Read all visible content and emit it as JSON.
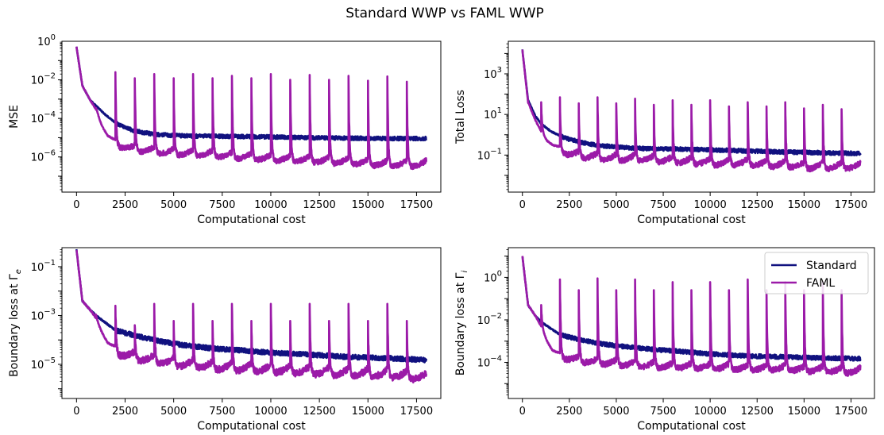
{
  "figure": {
    "title": "Standard WWP vs FAML WWP"
  },
  "colors": {
    "standard": "#10117f",
    "faml": "#9b1aa8"
  },
  "legend": {
    "location": "upper right",
    "panel": 3,
    "entries": [
      "Standard",
      "FAML"
    ]
  },
  "chart_data": [
    {
      "type": "line",
      "yscale": "log",
      "xlabel": "Computational cost",
      "ylabel": "MSE",
      "xlim": [
        -750,
        18750
      ],
      "ylim": [
        1.5e-08,
        1.0
      ],
      "xticks": [
        0,
        2500,
        5000,
        7500,
        10000,
        12500,
        15000,
        17500
      ],
      "xtick_labels": [
        "0",
        "2500",
        "5000",
        "7500",
        "10000",
        "12500",
        "15000",
        "17500"
      ],
      "yticks": [
        1e-06,
        0.0001,
        0.01,
        1
      ],
      "ytick_labels": [
        {
          "b": "10",
          "e": "−6"
        },
        {
          "b": "10",
          "e": "−4"
        },
        {
          "b": "10",
          "e": "−2"
        },
        {
          "b": "10",
          "e": "0"
        }
      ],
      "series": [
        {
          "name": "Standard",
          "key": "standard",
          "x": [
            0,
            300,
            700,
            1000,
            1500,
            2000,
            2500,
            3000,
            4000,
            5000,
            6000,
            7000,
            8000,
            10000,
            12000,
            14000,
            16000,
            18000
          ],
          "y": [
            0.5,
            0.005,
            0.0009,
            0.00045,
            0.00015,
            6e-05,
            3.5e-05,
            2.2e-05,
            1.5e-05,
            1.3e-05,
            1.2e-05,
            1.2e-05,
            1.15e-05,
            1.1e-05,
            1e-05,
            9.5e-06,
            9e-06,
            9e-06
          ]
        },
        {
          "name": "FAML",
          "key": "faml",
          "x": [
            0,
            300,
            700,
            1000,
            1300,
            1600,
            2000,
            3000,
            4000,
            5000,
            6000,
            7000,
            8000,
            9000,
            10000,
            11000,
            12000,
            13000,
            14000,
            15000,
            16000,
            17000,
            18000
          ],
          "y": [
            0.5,
            0.005,
            0.0009,
            0.0003,
            4e-05,
            1e-05,
            3.5e-06,
            1.8e-06,
            1.5e-06,
            1.2e-06,
            1.1e-06,
            1e-06,
            8e-07,
            7e-07,
            6e-07,
            5.5e-07,
            5e-07,
            4.5e-07,
            4e-07,
            3.5e-07,
            3e-07,
            3e-07,
            3e-07
          ],
          "spikes": [
            {
              "x": 1000,
              "y": 0.00035
            },
            {
              "x": 2000,
              "y": 0.025
            },
            {
              "x": 3000,
              "y": 0.012
            },
            {
              "x": 4000,
              "y": 0.02
            },
            {
              "x": 5000,
              "y": 0.012
            },
            {
              "x": 6000,
              "y": 0.02
            },
            {
              "x": 7000,
              "y": 0.012
            },
            {
              "x": 8000,
              "y": 0.016
            },
            {
              "x": 9000,
              "y": 0.012
            },
            {
              "x": 10000,
              "y": 0.02
            },
            {
              "x": 11000,
              "y": 0.01
            },
            {
              "x": 12000,
              "y": 0.018
            },
            {
              "x": 13000,
              "y": 0.01
            },
            {
              "x": 14000,
              "y": 0.016
            },
            {
              "x": 15000,
              "y": 0.009
            },
            {
              "x": 16000,
              "y": 0.015
            },
            {
              "x": 17000,
              "y": 0.008
            }
          ]
        }
      ]
    },
    {
      "type": "line",
      "yscale": "log",
      "xlabel": "Computational cost",
      "ylabel": "Total Loss",
      "xlim": [
        -750,
        18750
      ],
      "ylim": [
        0.0015,
        40000
      ],
      "xticks": [
        0,
        2500,
        5000,
        7500,
        10000,
        12500,
        15000,
        17500
      ],
      "xtick_labels": [
        "0",
        "2500",
        "5000",
        "7500",
        "10000",
        "12500",
        "15000",
        "17500"
      ],
      "yticks": [
        0.1,
        10,
        1000
      ],
      "ytick_labels": [
        {
          "b": "10",
          "e": "−1"
        },
        {
          "b": "10",
          "e": "1"
        },
        {
          "b": "10",
          "e": "3"
        }
      ],
      "series": [
        {
          "name": "Standard",
          "key": "standard",
          "x": [
            0,
            300,
            700,
            1000,
            1500,
            2000,
            2500,
            3000,
            4000,
            5000,
            6000,
            7000,
            8000,
            10000,
            12000,
            14000,
            16000,
            18000
          ],
          "y": [
            15000,
            50,
            8,
            3.5,
            1.5,
            0.9,
            0.6,
            0.45,
            0.3,
            0.25,
            0.22,
            0.2,
            0.2,
            0.18,
            0.16,
            0.14,
            0.13,
            0.12
          ]
        },
        {
          "name": "FAML",
          "key": "faml",
          "x": [
            0,
            300,
            700,
            1000,
            1300,
            1600,
            2000,
            3000,
            4000,
            5000,
            6000,
            7000,
            8000,
            9000,
            10000,
            11000,
            12000,
            13000,
            14000,
            15000,
            16000,
            17000,
            18000
          ],
          "y": [
            15000,
            40,
            5,
            1.5,
            0.5,
            0.25,
            0.12,
            0.07,
            0.06,
            0.05,
            0.05,
            0.045,
            0.04,
            0.035,
            0.03,
            0.03,
            0.03,
            0.025,
            0.025,
            0.02,
            0.02,
            0.02,
            0.02
          ],
          "spikes": [
            {
              "x": 1000,
              "y": 40
            },
            {
              "x": 2000,
              "y": 70
            },
            {
              "x": 3000,
              "y": 35
            },
            {
              "x": 4000,
              "y": 70
            },
            {
              "x": 5000,
              "y": 35
            },
            {
              "x": 6000,
              "y": 60
            },
            {
              "x": 7000,
              "y": 30
            },
            {
              "x": 8000,
              "y": 50
            },
            {
              "x": 9000,
              "y": 30
            },
            {
              "x": 10000,
              "y": 50
            },
            {
              "x": 11000,
              "y": 25
            },
            {
              "x": 12000,
              "y": 40
            },
            {
              "x": 13000,
              "y": 25
            },
            {
              "x": 14000,
              "y": 40
            },
            {
              "x": 15000,
              "y": 20
            },
            {
              "x": 16000,
              "y": 30
            },
            {
              "x": 17000,
              "y": 18
            }
          ]
        }
      ]
    },
    {
      "type": "line",
      "yscale": "log",
      "xlabel": "Computational cost",
      "ylabel": "Boundary loss at Γ",
      "ylabel_sub": "e",
      "xlim": [
        -750,
        18750
      ],
      "ylim": [
        4e-07,
        0.6
      ],
      "xticks": [
        0,
        2500,
        5000,
        7500,
        10000,
        12500,
        15000,
        17500
      ],
      "xtick_labels": [
        "0",
        "2500",
        "5000",
        "7500",
        "10000",
        "12500",
        "15000",
        "17500"
      ],
      "yticks": [
        1e-05,
        0.001,
        0.1
      ],
      "ytick_labels": [
        {
          "b": "10",
          "e": "−5"
        },
        {
          "b": "10",
          "e": "−3"
        },
        {
          "b": "10",
          "e": "−1"
        }
      ],
      "series": [
        {
          "name": "Standard",
          "key": "standard",
          "x": [
            0,
            300,
            700,
            1000,
            1500,
            2000,
            3000,
            4000,
            5000,
            6000,
            7000,
            8000,
            9000,
            10000,
            12000,
            14000,
            16000,
            18000
          ],
          "y": [
            0.5,
            0.004,
            0.0017,
            0.001,
            0.0005,
            0.00025,
            0.00015,
            0.0001,
            7e-05,
            5.5e-05,
            4.5e-05,
            4e-05,
            3.5e-05,
            3e-05,
            2.5e-05,
            2e-05,
            1.8e-05,
            1.5e-05
          ]
        },
        {
          "name": "FAML",
          "key": "faml",
          "x": [
            0,
            300,
            700,
            1000,
            1300,
            1600,
            2000,
            3000,
            4000,
            5000,
            6000,
            7000,
            8000,
            9000,
            10000,
            11000,
            12000,
            13000,
            14000,
            15000,
            16000,
            17000,
            18000
          ],
          "y": [
            0.5,
            0.004,
            0.0017,
            0.0008,
            0.0002,
            6e-05,
            2.5e-05,
            1.5e-05,
            1.1e-05,
            8e-06,
            7e-06,
            6e-06,
            5.5e-06,
            5e-06,
            4.5e-06,
            4e-06,
            3.8e-06,
            3.5e-06,
            3.2e-06,
            3e-06,
            2.8e-06,
            2.5e-06,
            2e-06
          ],
          "spikes": [
            {
              "x": 1000,
              "y": 0.0011
            },
            {
              "x": 2000,
              "y": 0.0025
            },
            {
              "x": 3000,
              "y": 0.0004
            },
            {
              "x": 4000,
              "y": 0.003
            },
            {
              "x": 5000,
              "y": 0.0006
            },
            {
              "x": 6000,
              "y": 0.003
            },
            {
              "x": 7000,
              "y": 0.0006
            },
            {
              "x": 8000,
              "y": 0.003
            },
            {
              "x": 9000,
              "y": 0.0006
            },
            {
              "x": 10000,
              "y": 0.003
            },
            {
              "x": 11000,
              "y": 0.0006
            },
            {
              "x": 12000,
              "y": 0.003
            },
            {
              "x": 13000,
              "y": 0.0006
            },
            {
              "x": 14000,
              "y": 0.003
            },
            {
              "x": 15000,
              "y": 0.0006
            },
            {
              "x": 16000,
              "y": 0.003
            },
            {
              "x": 17000,
              "y": 0.0006
            }
          ]
        }
      ]
    },
    {
      "type": "line",
      "yscale": "log",
      "xlabel": "Computational cost",
      "ylabel": "Boundary loss at Γ",
      "ylabel_sub": "i",
      "xlim": [
        -750,
        18750
      ],
      "ylim": [
        2e-06,
        25
      ],
      "xticks": [
        0,
        2500,
        5000,
        7500,
        10000,
        12500,
        15000,
        17500
      ],
      "xtick_labels": [
        "0",
        "2500",
        "5000",
        "7500",
        "10000",
        "12500",
        "15000",
        "17500"
      ],
      "yticks": [
        0.0001,
        0.01,
        1
      ],
      "ytick_labels": [
        {
          "b": "10",
          "e": "−4"
        },
        {
          "b": "10",
          "e": "−2"
        },
        {
          "b": "10",
          "e": "0"
        }
      ],
      "series": [
        {
          "name": "Standard",
          "key": "standard",
          "x": [
            0,
            300,
            700,
            1000,
            1500,
            2000,
            3000,
            4000,
            5000,
            6000,
            7000,
            8000,
            9000,
            10000,
            12000,
            14000,
            16000,
            18000
          ],
          "y": [
            10,
            0.05,
            0.015,
            0.008,
            0.004,
            0.002,
            0.0012,
            0.0008,
            0.0006,
            0.0005,
            0.0004,
            0.00035,
            0.0003,
            0.00025,
            0.0002,
            0.00018,
            0.00016,
            0.00015
          ]
        },
        {
          "name": "FAML",
          "key": "faml",
          "x": [
            0,
            300,
            700,
            1000,
            1300,
            1600,
            2000,
            3000,
            4000,
            5000,
            6000,
            7000,
            8000,
            9000,
            10000,
            11000,
            12000,
            13000,
            14000,
            15000,
            16000,
            17000,
            18000
          ],
          "y": [
            10,
            0.05,
            0.015,
            0.005,
            0.001,
            0.0003,
            0.00015,
            0.0001,
            8e-05,
            7e-05,
            6e-05,
            5.5e-05,
            5e-05,
            5e-05,
            4.5e-05,
            4.5e-05,
            4e-05,
            4e-05,
            4e-05,
            3.5e-05,
            3.5e-05,
            3e-05,
            3e-05
          ],
          "spikes": [
            {
              "x": 1000,
              "y": 0.05
            },
            {
              "x": 2000,
              "y": 0.8
            },
            {
              "x": 3000,
              "y": 0.25
            },
            {
              "x": 4000,
              "y": 0.9
            },
            {
              "x": 5000,
              "y": 0.25
            },
            {
              "x": 6000,
              "y": 0.8
            },
            {
              "x": 7000,
              "y": 0.25
            },
            {
              "x": 8000,
              "y": 0.6
            },
            {
              "x": 9000,
              "y": 0.25
            },
            {
              "x": 10000,
              "y": 0.6
            },
            {
              "x": 11000,
              "y": 0.25
            },
            {
              "x": 12000,
              "y": 0.8
            },
            {
              "x": 13000,
              "y": 0.25
            },
            {
              "x": 14000,
              "y": 0.6
            },
            {
              "x": 15000,
              "y": 0.25
            },
            {
              "x": 16000,
              "y": 0.6
            },
            {
              "x": 17000,
              "y": 0.25
            }
          ]
        }
      ]
    }
  ]
}
